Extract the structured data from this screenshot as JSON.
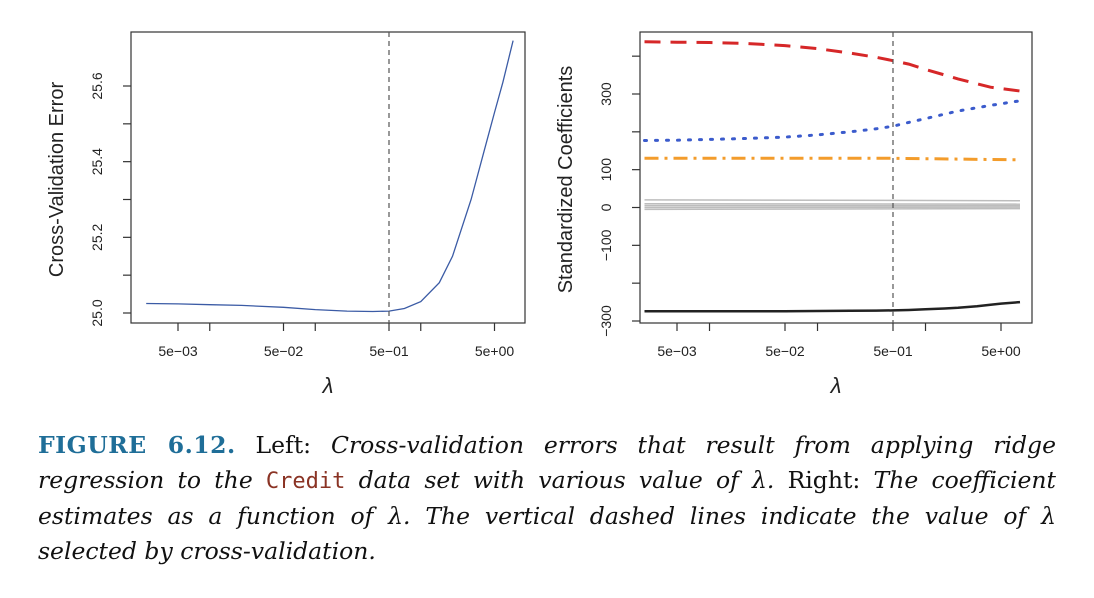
{
  "chart_data": [
    {
      "type": "line",
      "ylabel": "Cross-Validation Error",
      "xlabel": "λ",
      "x_scale": "log",
      "xlim": [
        0.0016,
        10
      ],
      "ylim": [
        24.97,
        25.75
      ],
      "x_ticks": [
        0.005,
        0.05,
        0.5,
        5
      ],
      "x_tick_labels": [
        "5e−03",
        "5e−02",
        "5e−01",
        "5e+00"
      ],
      "y_ticks": [
        25.0,
        25.2,
        25.4,
        25.6
      ],
      "y_tick_labels": [
        "25.0",
        "25.2",
        "25.4",
        "25.6"
      ],
      "selected_lambda": 0.5,
      "series": [
        {
          "color": "#3b5ba5",
          "style": "solid",
          "x": [
            0.0025,
            0.005,
            0.01,
            0.02,
            0.05,
            0.1,
            0.2,
            0.35,
            0.5,
            0.7,
            1,
            1.5,
            2,
            3,
            4,
            5,
            6,
            7.5
          ],
          "y": [
            25.025,
            25.024,
            25.022,
            25.02,
            25.015,
            25.009,
            25.005,
            25.004,
            25.005,
            25.012,
            25.03,
            25.08,
            25.15,
            25.3,
            25.43,
            25.53,
            25.61,
            25.72
          ]
        }
      ]
    },
    {
      "type": "line",
      "ylabel": "Standardized Coefficients",
      "xlabel": "λ",
      "x_scale": "log",
      "xlim": [
        0.0016,
        10
      ],
      "ylim": [
        -300,
        440
      ],
      "x_ticks": [
        0.005,
        0.05,
        0.5,
        5
      ],
      "x_tick_labels": [
        "5e−03",
        "5e−02",
        "5e−01",
        "5e+00"
      ],
      "y_ticks": [
        -300,
        -100,
        0,
        100,
        300
      ],
      "y_tick_labels": [
        "−300",
        "−100",
        "0",
        "100",
        "300"
      ],
      "selected_lambda": 0.5,
      "series": [
        {
          "color": "#d62728",
          "style": "dashed",
          "width": 3,
          "x": [
            0.0025,
            0.005,
            0.01,
            0.02,
            0.05,
            0.1,
            0.2,
            0.35,
            0.5,
            0.7,
            1,
            2,
            4,
            7.5
          ],
          "y": [
            438,
            437,
            436,
            434,
            428,
            420,
            408,
            397,
            388,
            379,
            365,
            340,
            318,
            308
          ]
        },
        {
          "color": "#3b5bcc",
          "style": "dotted",
          "width": 3,
          "x": [
            0.0025,
            0.005,
            0.01,
            0.02,
            0.05,
            0.1,
            0.2,
            0.35,
            0.5,
            0.7,
            1,
            2,
            4,
            7.5
          ],
          "y": [
            177,
            178,
            180,
            182,
            186,
            192,
            200,
            208,
            215,
            225,
            235,
            255,
            270,
            282
          ]
        },
        {
          "color": "#f39c2b",
          "style": "dashdot",
          "width": 3,
          "x": [
            0.0025,
            0.01,
            0.05,
            0.2,
            0.5,
            1,
            2,
            4,
            7.5
          ],
          "y": [
            130,
            130,
            130,
            130,
            130,
            129,
            128,
            127,
            126
          ]
        },
        {
          "color": "#bdbdbd",
          "style": "solid",
          "width": 1.5,
          "x": [
            0.0025,
            7.5
          ],
          "y": [
            20,
            18
          ]
        },
        {
          "color": "#bdbdbd",
          "style": "solid",
          "width": 1.5,
          "x": [
            0.0025,
            7.5
          ],
          "y": [
            10,
            9
          ]
        },
        {
          "color": "#bdbdbd",
          "style": "solid",
          "width": 1.5,
          "x": [
            0.0025,
            7.5
          ],
          "y": [
            5,
            5
          ]
        },
        {
          "color": "#bdbdbd",
          "style": "solid",
          "width": 1.5,
          "x": [
            0.0025,
            7.5
          ],
          "y": [
            0,
            1
          ]
        },
        {
          "color": "#bdbdbd",
          "style": "solid",
          "width": 1.5,
          "x": [
            0.0025,
            7.5
          ],
          "y": [
            -5,
            -3
          ]
        },
        {
          "color": "#222222",
          "style": "solid",
          "width": 2.5,
          "x": [
            0.0025,
            0.005,
            0.01,
            0.02,
            0.05,
            0.1,
            0.2,
            0.35,
            0.5,
            0.7,
            1,
            1.5,
            2,
            3,
            4,
            5,
            7.5
          ],
          "y": [
            -274,
            -274,
            -274,
            -274,
            -274,
            -273.5,
            -273,
            -272.5,
            -272,
            -271,
            -269,
            -267,
            -265,
            -261,
            -257,
            -254,
            -250
          ]
        }
      ]
    }
  ],
  "caption": {
    "label": "FIGURE 6.12.",
    "parts": [
      {
        "text": " Left: ",
        "style": "normal"
      },
      {
        "text": "Cross-validation errors that result from applying ridge regression to the ",
        "style": "italic"
      },
      {
        "text": "Credit",
        "style": "code"
      },
      {
        "text": " data set with various value of λ.",
        "style": "italic"
      },
      {
        "text": " Right: ",
        "style": "normal"
      },
      {
        "text": "The coefficient estimates as a function of λ. The vertical dashed lines indicate the value of λ selected by cross-validation.",
        "style": "italic"
      }
    ]
  }
}
